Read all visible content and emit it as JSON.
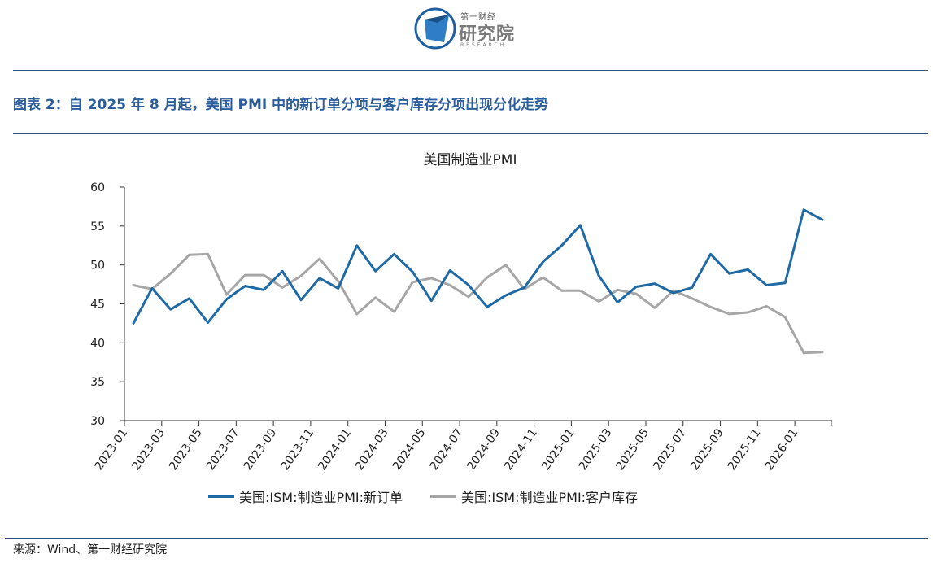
{
  "header": {
    "logo_cn_small": "第一财经",
    "logo_cn_big": "研究院",
    "logo_en": "RESEARCH",
    "figure_title": "图表 2：自 2025 年 8 月起，美国 PMI 中的新订单分项与客户库存分项出现分化走势"
  },
  "colors": {
    "series1": "#1f6aa5",
    "series2": "#a6a6a6",
    "title": "#2b5c9b"
  },
  "chart_data": {
    "type": "line",
    "title": "美国制造业PMI",
    "xlabel": "",
    "ylabel": "",
    "ylim": [
      30,
      60
    ],
    "yticks": [
      30,
      35,
      40,
      45,
      50,
      55,
      60
    ],
    "x": [
      "2023-01",
      "2023-02",
      "2023-03",
      "2023-04",
      "2023-05",
      "2023-06",
      "2023-07",
      "2023-08",
      "2023-09",
      "2023-10",
      "2023-11",
      "2023-12",
      "2024-01",
      "2024-02",
      "2024-03",
      "2024-04",
      "2024-05",
      "2024-06",
      "2024-07",
      "2024-08",
      "2024-09",
      "2024-10",
      "2024-11",
      "2024-12",
      "2025-01",
      "2025-02",
      "2025-03",
      "2025-04",
      "2025-05",
      "2025-06",
      "2025-07",
      "2025-08",
      "2025-09",
      "2025-10",
      "2025-11",
      "2025-12",
      "2026-01",
      "2026-02"
    ],
    "tick_labels": [
      "2023-01",
      "2023-03",
      "2023-05",
      "2023-07",
      "2023-09",
      "2023-11",
      "2024-01",
      "2024-03",
      "2024-05",
      "2024-07",
      "2024-09",
      "2024-11",
      "2025-01",
      "2025-03",
      "2025-05",
      "2025-07",
      "2025-09",
      "2025-11",
      "2026-01"
    ],
    "series": [
      {
        "name": "美国:ISM:制造业PMI:新订单",
        "values": [
          42.5,
          47.0,
          44.3,
          45.7,
          42.6,
          45.6,
          47.3,
          46.8,
          49.2,
          45.5,
          48.3,
          47.0,
          52.5,
          49.2,
          51.4,
          49.1,
          45.4,
          49.3,
          47.4,
          44.6,
          46.1,
          47.1,
          50.4,
          52.5,
          55.1,
          48.6,
          45.2,
          47.2,
          47.6,
          46.4,
          47.1,
          51.4,
          48.9,
          49.4,
          47.4,
          47.7,
          57.1,
          55.8
        ]
      },
      {
        "name": "美国:ISM:制造业PMI:客户库存",
        "values": [
          47.4,
          46.9,
          48.9,
          51.3,
          51.4,
          46.2,
          48.7,
          48.7,
          47.1,
          48.6,
          50.8,
          47.9,
          43.7,
          45.8,
          44.0,
          47.8,
          48.3,
          47.4,
          45.9,
          48.4,
          50.0,
          46.9,
          48.4,
          46.7,
          46.7,
          45.3,
          46.8,
          46.3,
          44.5,
          46.7,
          45.7,
          44.6,
          43.7,
          43.9,
          44.7,
          43.3,
          38.7,
          38.8
        ]
      }
    ]
  },
  "footer": {
    "source": "来源：Wind、第一财经研究院"
  }
}
